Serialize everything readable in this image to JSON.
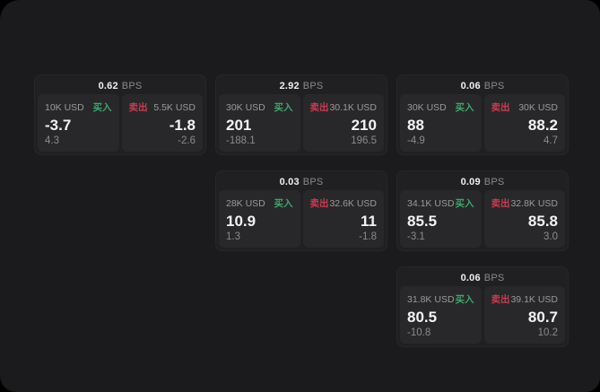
{
  "unit_label": "BPS",
  "side_labels": {
    "buy": "买入",
    "sell": "卖出"
  },
  "colors": {
    "buy": "#3aa76d",
    "sell": "#cc3a53",
    "panel_bg": "#1b1b1d",
    "card_bg": "#202022",
    "subcard_bg": "#28282a"
  },
  "cards": [
    {
      "bps": "0.62",
      "buy": {
        "amount": "10K USD",
        "value": "-3.7",
        "delta": "4.3"
      },
      "sell": {
        "amount": "5.5K USD",
        "value": "-1.8",
        "delta": "-2.6"
      }
    },
    {
      "bps": "2.92",
      "buy": {
        "amount": "30K USD",
        "value": "201",
        "delta": "-188.1"
      },
      "sell": {
        "amount": "30.1K USD",
        "value": "210",
        "delta": "196.5"
      }
    },
    {
      "bps": "0.06",
      "buy": {
        "amount": "30K USD",
        "value": "88",
        "delta": "-4.9"
      },
      "sell": {
        "amount": "30K USD",
        "value": "88.2",
        "delta": "4.7"
      }
    },
    {
      "bps": "0.03",
      "buy": {
        "amount": "28K USD",
        "value": "10.9",
        "delta": "1.3"
      },
      "sell": {
        "amount": "32.6K USD",
        "value": "11",
        "delta": "-1.8"
      }
    },
    {
      "bps": "0.09",
      "buy": {
        "amount": "34.1K USD",
        "value": "85.5",
        "delta": "-3.1"
      },
      "sell": {
        "amount": "32.8K USD",
        "value": "85.8",
        "delta": "3.0"
      }
    },
    {
      "bps": "0.06",
      "buy": {
        "amount": "31.8K USD",
        "value": "80.5",
        "delta": "-10.8"
      },
      "sell": {
        "amount": "39.1K USD",
        "value": "80.7",
        "delta": "10.2"
      }
    }
  ]
}
